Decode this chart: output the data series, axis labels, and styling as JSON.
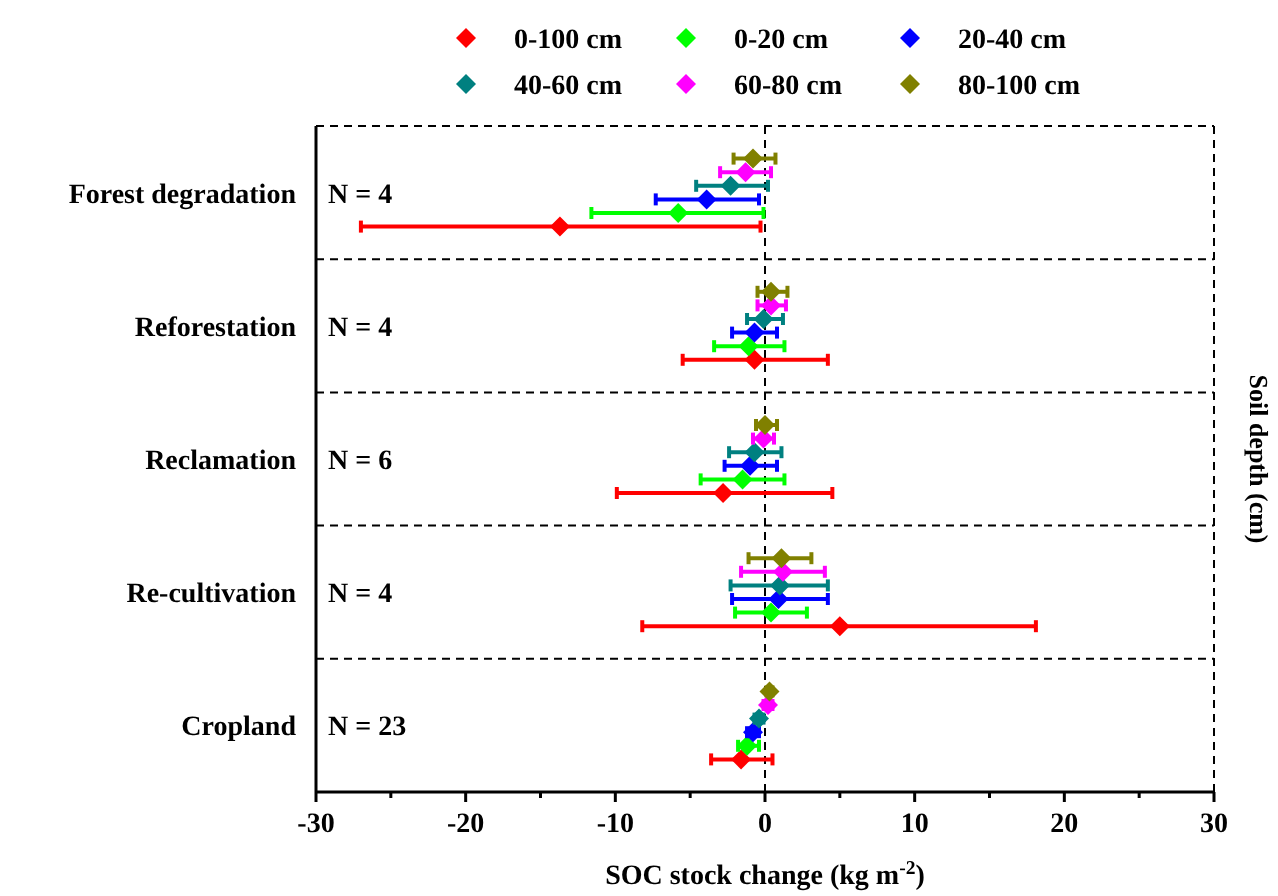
{
  "chart_data": {
    "type": "scatter",
    "orientation": "horizontal",
    "xlabel": "SOC stock change (kg m$^{-2}$)",
    "y2label": "Soil depth (cm)",
    "categories": [
      "Forest degradation",
      "Reforestation",
      "Reclamation",
      "Re-cultivation",
      "Cropland"
    ],
    "series": [
      {
        "name": "0-100 cm",
        "color": "#ff0000",
        "values": [
          -13.7,
          -0.7,
          -2.8,
          5.0,
          -1.6
        ],
        "errors": [
          [
            -27.0,
            -0.3
          ],
          [
            -5.5,
            4.2
          ],
          [
            -9.9,
            4.5
          ],
          [
            -8.2,
            18.1
          ],
          [
            -3.6,
            0.5
          ]
        ]
      },
      {
        "name": "0-20 cm",
        "color": "#00ff00",
        "values": [
          -5.8,
          -1.1,
          -1.5,
          0.4,
          -1.2
        ],
        "errors": [
          [
            -11.6,
            -0.1
          ],
          [
            -3.4,
            1.3
          ],
          [
            -4.3,
            1.3
          ],
          [
            -2.0,
            2.8
          ],
          [
            -1.8,
            -0.4
          ]
        ]
      },
      {
        "name": "20-40 cm",
        "color": "#0000ff",
        "values": [
          -3.9,
          -0.7,
          -1.0,
          0.9,
          -0.8
        ],
        "errors": [
          [
            -7.3,
            -0.4
          ],
          [
            -2.2,
            0.8
          ],
          [
            -2.7,
            0.8
          ],
          [
            -2.2,
            4.2
          ],
          [
            -1.2,
            -0.4
          ]
        ]
      },
      {
        "name": "40-60 cm",
        "color": "#008080",
        "values": [
          -2.3,
          -0.1,
          -0.7,
          1.0,
          -0.4
        ],
        "errors": [
          [
            -4.6,
            0.2
          ],
          [
            -1.2,
            1.2
          ],
          [
            -2.4,
            1.1
          ],
          [
            -2.3,
            4.2
          ],
          [
            -0.7,
            -0.1
          ]
        ]
      },
      {
        "name": "60-80 cm",
        "color": "#ff00ff",
        "values": [
          -1.3,
          0.4,
          -0.1,
          1.2,
          0.2
        ],
        "errors": [
          [
            -3.0,
            0.4
          ],
          [
            -0.5,
            1.4
          ],
          [
            -0.8,
            0.6
          ],
          [
            -1.6,
            4.0
          ],
          [
            -0.1,
            0.5
          ]
        ]
      },
      {
        "name": "80-100 cm",
        "color": "#808000",
        "values": [
          -0.8,
          0.4,
          0.0,
          1.1,
          0.3
        ],
        "errors": [
          [
            -2.1,
            0.7
          ],
          [
            -0.5,
            1.5
          ],
          [
            -0.6,
            0.8
          ],
          [
            -1.1,
            3.1
          ],
          [
            0.1,
            0.5
          ]
        ]
      }
    ],
    "xlim": [
      -30,
      30
    ],
    "xticks": [
      -30,
      {
        "value": -25,
        "label": null
      },
      -20,
      {
        "value": -15,
        "label": null
      },
      -10,
      {
        "value": -5,
        "label": null
      },
      0,
      {
        "value": 5,
        "label": null
      },
      10,
      {
        "value": 15,
        "label": null
      },
      20,
      {
        "value": 25,
        "label": null
      },
      30
    ],
    "annotations": [
      "N = 4",
      "N = 4",
      "N = 6",
      "N = 4",
      "N = 23"
    ],
    "ref_lines": [
      {
        "axis": "x",
        "value": 0,
        "line_style": "dashed",
        "color": "#000000"
      }
    ],
    "grid": "y",
    "legend": "top",
    "marker": "diamond"
  }
}
